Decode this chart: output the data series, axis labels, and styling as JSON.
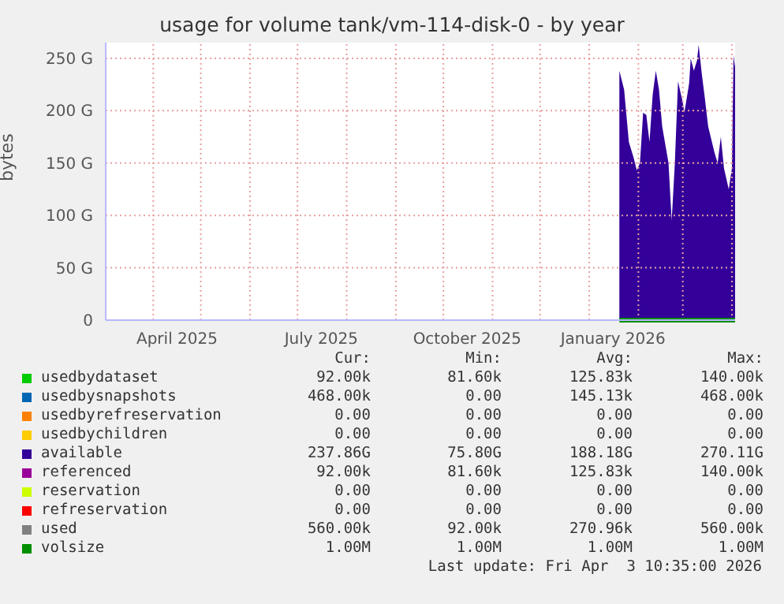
{
  "chart_data": {
    "type": "area",
    "title": "usage for volume tank/vm-114-disk-0 - by year",
    "ylabel": "bytes",
    "xlim": [
      "2025-03-02",
      "2026-04-03"
    ],
    "xticks": [
      {
        "value": "2025-04-01",
        "label": null
      },
      {
        "value": "2025-04-16",
        "label": "April 2025"
      },
      {
        "value": "2025-05-01",
        "label": null
      },
      {
        "value": "2025-06-01",
        "label": null
      },
      {
        "value": "2025-07-01",
        "label": null
      },
      {
        "value": "2025-07-16",
        "label": "July 2025"
      },
      {
        "value": "2025-08-01",
        "label": null
      },
      {
        "value": "2025-09-01",
        "label": null
      },
      {
        "value": "2025-10-01",
        "label": null
      },
      {
        "value": "2025-10-16",
        "label": "October 2025"
      },
      {
        "value": "2025-11-01",
        "label": null
      },
      {
        "value": "2025-12-01",
        "label": null
      },
      {
        "value": "2026-01-01",
        "label": null
      },
      {
        "value": "2026-01-16",
        "label": "January 2026"
      },
      {
        "value": "2026-02-01",
        "label": null
      },
      {
        "value": "2026-03-01",
        "label": null
      },
      {
        "value": "2026-04-01",
        "label": null
      }
    ],
    "ylim": [
      0,
      265
    ],
    "yticks": [
      {
        "value": 0,
        "label": "0"
      },
      {
        "value": 50,
        "label": "50 G"
      },
      {
        "value": 100,
        "label": "100 G"
      },
      {
        "value": 150,
        "label": "150 G"
      },
      {
        "value": 200,
        "label": "200 G"
      },
      {
        "value": 250,
        "label": "250 G"
      }
    ],
    "grid": true,
    "legend": "bottom",
    "series": [
      {
        "name": "usedbydataset",
        "color": "#00cc00"
      },
      {
        "name": "usedbysnapshots",
        "color": "#0066b3"
      },
      {
        "name": "usedbyrefreservation",
        "color": "#ff8000"
      },
      {
        "name": "usedbychildren",
        "color": "#ffcc00"
      },
      {
        "name": "available",
        "color": "#330099",
        "x": [
          "2026-01-20",
          "2026-01-23",
          "2026-01-26",
          "2026-01-29",
          "2026-01-31",
          "2026-02-02",
          "2026-02-04",
          "2026-02-06",
          "2026-02-08",
          "2026-02-10",
          "2026-02-12",
          "2026-02-14",
          "2026-02-16",
          "2026-02-20",
          "2026-02-22",
          "2026-02-24",
          "2026-02-26",
          "2026-03-01",
          "2026-03-02",
          "2026-03-05",
          "2026-03-06",
          "2026-03-08",
          "2026-03-10",
          "2026-03-11",
          "2026-03-13",
          "2026-03-15",
          "2026-03-17",
          "2026-03-21",
          "2026-03-23",
          "2026-03-25",
          "2026-03-27",
          "2026-03-30",
          "2026-04-01",
          "2026-04-02",
          "2026-04-03"
        ],
        "values": [
          238,
          220,
          170,
          155,
          143,
          150,
          198,
          196,
          170,
          215,
          238,
          220,
          185,
          150,
          95,
          150,
          228,
          208,
          198,
          226,
          250,
          238,
          248,
          263,
          235,
          211,
          185,
          160,
          150,
          175,
          145,
          125,
          145,
          253,
          241
        ]
      },
      {
        "name": "referenced",
        "color": "#990099"
      },
      {
        "name": "reservation",
        "color": "#ccff00"
      },
      {
        "name": "refreservation",
        "color": "#ff0000"
      },
      {
        "name": "used",
        "color": "#808080"
      },
      {
        "name": "volsize",
        "type": "line",
        "color": "#008f00",
        "x": [
          "2026-01-20",
          "2026-04-03"
        ],
        "values": [
          0,
          0
        ]
      }
    ],
    "annotations": [
      "Cur:",
      "Min:",
      "Avg:",
      "Max:",
      "92.00k",
      "81.60k",
      "125.83k",
      "140.00k",
      "468.00k",
      "0.00",
      "145.13k",
      "468.00k",
      "0.00",
      "0.00",
      "0.00",
      "0.00",
      "0.00",
      "0.00",
      "0.00",
      "0.00",
      "237.86G",
      "75.80G",
      "188.18G",
      "270.11G",
      "92.00k",
      "81.60k",
      "125.83k",
      "140.00k",
      "0.00",
      "0.00",
      "0.00",
      "0.00",
      "0.00",
      "0.00",
      "0.00",
      "0.00",
      "560.00k",
      "92.00k",
      "270.96k",
      "560.00k",
      "1.00M",
      "1.00M",
      "1.00M",
      "1.00M",
      "Last update: Fri Apr  3 10:35:00 2026"
    ]
  }
}
